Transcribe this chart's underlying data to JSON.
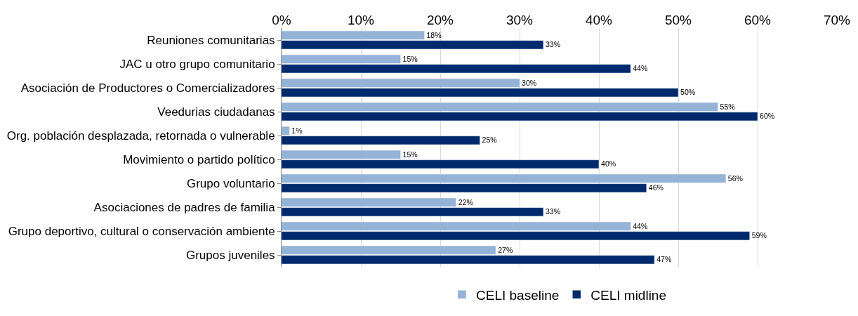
{
  "chart_data": {
    "type": "bar",
    "orientation": "horizontal",
    "categories": [
      "Reuniones comunitarias",
      "JAC u otro grupo comunitario",
      "Asociación de Productores o Comercializadores",
      "Veedurias ciudadanas",
      "Org. población desplazada, retornada o vulnerable",
      "Movimiento o partido político",
      "Grupo voluntario",
      "Asociaciones de padres de familia",
      "Grupo deportivo, cultural o conservación ambiente",
      "Grupos juveniles"
    ],
    "series": [
      {
        "name": "CELI baseline",
        "color": "#95b3d7",
        "values": [
          18,
          15,
          30,
          55,
          1,
          15,
          56,
          22,
          44,
          27
        ],
        "value_labels": [
          "18%",
          "15%",
          "30%",
          "55%",
          "1%",
          "15%",
          "56%",
          "22%",
          "44%",
          "27%"
        ]
      },
      {
        "name": "CELI midline",
        "color": "#002a6c",
        "values": [
          33,
          44,
          50,
          60,
          25,
          40,
          46,
          33,
          59,
          47
        ],
        "value_labels": [
          "33%",
          "44%",
          "50%",
          "60%",
          "25%",
          "40%",
          "46%",
          "33%",
          "59%",
          "47%"
        ]
      }
    ],
    "xlim": [
      0,
      70
    ],
    "xticks": [
      {
        "value": 0,
        "label": "0%"
      },
      {
        "value": 10,
        "label": "10%"
      },
      {
        "value": 20,
        "label": "20%"
      },
      {
        "value": 30,
        "label": "30%"
      },
      {
        "value": 40,
        "label": "40%"
      },
      {
        "value": 50,
        "label": "50%"
      },
      {
        "value": 60,
        "label": "60%"
      },
      {
        "value": 70,
        "label": "70%"
      }
    ],
    "grid": "x",
    "legend": "bottom"
  }
}
